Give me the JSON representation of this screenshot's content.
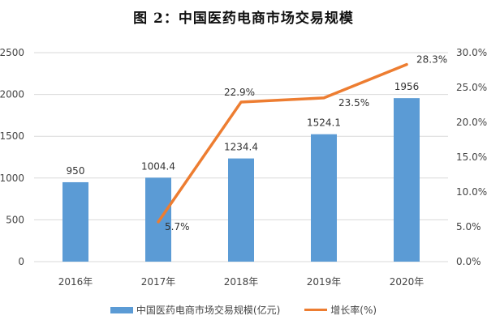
{
  "title": "图 2：中国医药电商市场交易规模",
  "chart_data": {
    "type": "bar",
    "title": "图 2：中国医药电商市场交易规模",
    "categories": [
      "2016年",
      "2017年",
      "2018年",
      "2019年",
      "2020年"
    ],
    "series": [
      {
        "name": "中国医药电商市场交易规模(亿元)",
        "type": "bar",
        "axis": "left",
        "color": "#5B9BD5",
        "values": [
          950,
          1004.4,
          1234.4,
          1524.1,
          1956
        ],
        "labels": [
          "950",
          "1004.4",
          "1234.4",
          "1524.1",
          "1956"
        ]
      },
      {
        "name": "增长率(%)",
        "type": "line",
        "axis": "right",
        "color": "#ED7D31",
        "values": [
          null,
          5.7,
          22.9,
          23.5,
          28.3
        ],
        "labels": [
          "",
          "5.7%",
          "22.9%",
          "23.5%",
          "28.3%"
        ]
      }
    ],
    "left_axis": {
      "ylim": [
        0,
        2500
      ],
      "ticks": [
        "0",
        "500",
        "1000",
        "1500",
        "2000",
        "2500"
      ]
    },
    "right_axis": {
      "ylim": [
        0,
        30
      ],
      "ticks": [
        "0.0%",
        "5.0%",
        "10.0%",
        "15.0%",
        "20.0%",
        "25.0%",
        "30.0%"
      ]
    },
    "grid": true,
    "legend_position": "bottom",
    "xlabel": "",
    "ylabel": ""
  },
  "legend": {
    "bar_label": "中国医药电商市场交易规模(亿元)",
    "line_label": "增长率(%)"
  }
}
